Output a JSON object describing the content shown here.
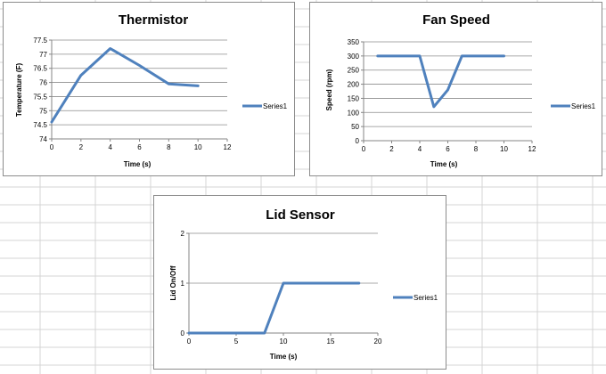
{
  "colors": {
    "series": "#4f81bd",
    "gridline": "#8c8c8c",
    "axis": "#868686",
    "sheet_grid": "#d4d4d4"
  },
  "chart_data": [
    {
      "type": "line",
      "title": "Thermistor",
      "xlabel": "Time (s)",
      "ylabel": "Temperature (F)",
      "xlim": [
        0,
        12
      ],
      "ylim": [
        74,
        77.5
      ],
      "xticks": [
        "0",
        "2",
        "4",
        "6",
        "8",
        "10",
        "12"
      ],
      "yticks": [
        "74",
        "74.5",
        "75",
        "75.5",
        "76",
        "76.5",
        "77",
        "77.5"
      ],
      "grid": true,
      "legend": "right",
      "series": [
        {
          "name": "Series1",
          "x": [
            0,
            2,
            4,
            6,
            8,
            10
          ],
          "y": [
            74.6,
            76.25,
            77.2,
            76.6,
            75.95,
            75.88
          ]
        }
      ]
    },
    {
      "type": "line",
      "title": "Fan Speed",
      "xlabel": "Time (s)",
      "ylabel": "Speed (rpm)",
      "xlim": [
        0,
        12
      ],
      "ylim": [
        0,
        350
      ],
      "xticks": [
        "0",
        "2",
        "4",
        "6",
        "8",
        "10",
        "12"
      ],
      "yticks": [
        "0",
        "50",
        "100",
        "150",
        "200",
        "250",
        "300",
        "350"
      ],
      "grid": true,
      "legend": "right",
      "series": [
        {
          "name": "Series1",
          "x": [
            1,
            4,
            5,
            6,
            7,
            10
          ],
          "y": [
            300,
            300,
            120,
            180,
            300,
            300
          ]
        }
      ]
    },
    {
      "type": "line",
      "title": "Lid Sensor",
      "xlabel": "Time (s)",
      "ylabel": "Lid On/Off",
      "xlim": [
        0,
        20
      ],
      "ylim": [
        0,
        2
      ],
      "xticks": [
        "0",
        "5",
        "10",
        "15",
        "20"
      ],
      "yticks": [
        "0",
        "1",
        "2"
      ],
      "grid": true,
      "legend": "right",
      "series": [
        {
          "name": "Series1",
          "x": [
            0,
            8,
            10,
            18
          ],
          "y": [
            0,
            0,
            1,
            1
          ]
        }
      ]
    }
  ]
}
